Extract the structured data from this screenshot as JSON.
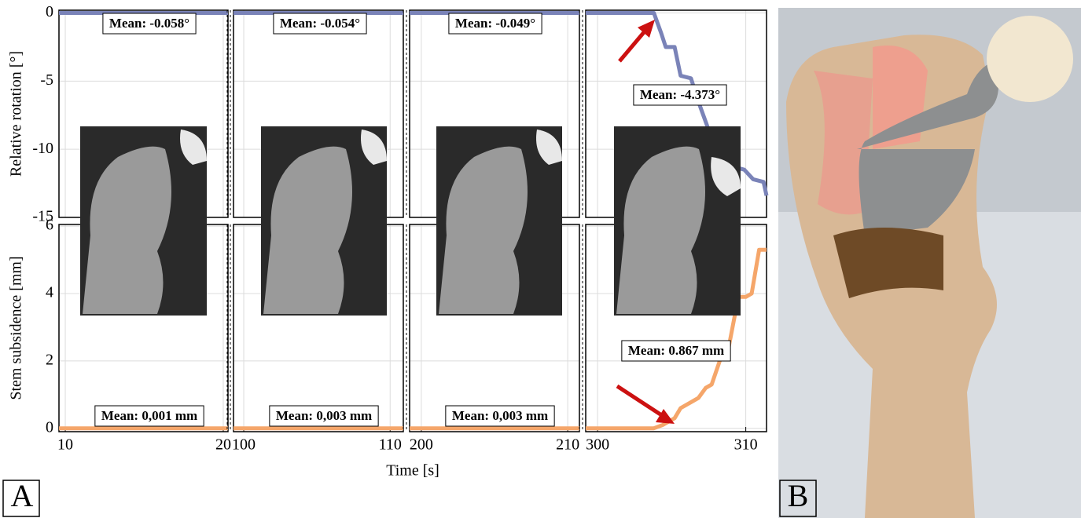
{
  "chart_data": [
    {
      "type": "line",
      "ylabel": "Relative rotation [°]",
      "color": "#7a83b8",
      "ylim": [
        -15,
        0.2
      ],
      "yticks": [
        0,
        -5,
        -10,
        -15
      ],
      "grid": true,
      "segments": [
        {
          "xlim": [
            9.6,
            20.3
          ],
          "xticks": [
            10,
            20
          ],
          "x": [
            9.6,
            20.3
          ],
          "values": [
            0,
            0
          ]
        },
        {
          "xlim": [
            99.3,
            110.9
          ],
          "xticks": [
            100,
            110
          ],
          "x": [
            99.3,
            110.9
          ],
          "values": [
            0,
            0
          ]
        },
        {
          "xlim": [
            199.2,
            210.8
          ],
          "xticks": [
            200,
            210
          ],
          "x": [
            199.2,
            210.8
          ],
          "values": [
            0,
            0
          ]
        },
        {
          "xlim": [
            299.2,
            311.4
          ],
          "xticks": [
            300,
            310
          ],
          "x": [
            299.2,
            303.8,
            304.3,
            304.6,
            305.2,
            305.6,
            306.3,
            306.8,
            307.3,
            307.8,
            308.4,
            309.2,
            309.9,
            310.5,
            311.2,
            311.4
          ],
          "values": [
            0,
            0,
            -1.5,
            -2.5,
            -2.5,
            -4.6,
            -4.8,
            -6.5,
            -8.0,
            -9.5,
            -9.7,
            -11.3,
            -11.5,
            -12.2,
            -12.4,
            -13.4
          ]
        }
      ],
      "annotations": [
        "Mean: -0.058°",
        "Mean: -0.054°",
        "Mean: -0.049°",
        "Mean: -4.373°"
      ]
    },
    {
      "type": "line",
      "ylabel": "Stem subsidence [mm]",
      "xlabel": "Time [s]",
      "color": "#f5a66a",
      "ylim": [
        -0.1,
        6.05
      ],
      "yticks": [
        0,
        2,
        4,
        6
      ],
      "grid": true,
      "segments": [
        {
          "xlim": [
            9.6,
            20.3
          ],
          "xticks": [
            10,
            20
          ],
          "x": [
            9.6,
            20.3
          ],
          "values": [
            0,
            0
          ]
        },
        {
          "xlim": [
            99.3,
            110.9
          ],
          "xticks": [
            100,
            110
          ],
          "x": [
            99.3,
            110.9
          ],
          "values": [
            0,
            0
          ]
        },
        {
          "xlim": [
            199.2,
            210.8
          ],
          "xticks": [
            200,
            210
          ],
          "x": [
            199.2,
            210.8
          ],
          "values": [
            0,
            0
          ]
        },
        {
          "xlim": [
            299.2,
            311.4
          ],
          "xticks": [
            300,
            310
          ],
          "x": [
            299.2,
            303.8,
            304.4,
            305.2,
            305.6,
            306.4,
            306.8,
            307.3,
            307.7,
            308.4,
            308.8,
            309.5,
            310.0,
            310.4,
            310.9,
            311.4
          ],
          "values": [
            0,
            0,
            0.1,
            0.3,
            0.6,
            0.8,
            0.9,
            1.2,
            1.3,
            2.2,
            2.3,
            3.9,
            3.9,
            4.0,
            5.3,
            5.3
          ]
        }
      ],
      "annotations": [
        "Mean: 0,001 mm",
        "Mean: 0,003 mm",
        "Mean: 0,003 mm",
        "Mean: 0.867 mm"
      ]
    }
  ],
  "panels": [
    "A",
    "B"
  ]
}
